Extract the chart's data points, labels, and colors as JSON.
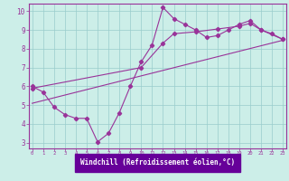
{
  "xlabel": "Windchill (Refroidissement éolien,°C)",
  "bg_color": "#cceee8",
  "plot_bg_color": "#cceee8",
  "line_color": "#993399",
  "grid_color": "#99cccc",
  "xlabel_bg": "#660099",
  "xlabel_fg": "#ffffff",
  "spine_color": "#993399",
  "tick_color": "#993399",
  "xlim": [
    -0.3,
    23.3
  ],
  "ylim": [
    2.7,
    10.4
  ],
  "xticks": [
    0,
    1,
    2,
    3,
    4,
    5,
    6,
    7,
    8,
    9,
    10,
    11,
    12,
    13,
    14,
    15,
    16,
    17,
    18,
    19,
    20,
    21,
    22,
    23
  ],
  "yticks": [
    3,
    4,
    5,
    6,
    7,
    8,
    9,
    10
  ],
  "line1_x": [
    0,
    1,
    2,
    3,
    4,
    5,
    6,
    7,
    8,
    9,
    10,
    11,
    12,
    13,
    14,
    15,
    16,
    17,
    18,
    19,
    20,
    21,
    22,
    23
  ],
  "line1_y": [
    6.0,
    5.7,
    4.9,
    4.5,
    4.3,
    4.3,
    3.05,
    3.5,
    4.6,
    6.0,
    7.3,
    8.2,
    10.2,
    9.6,
    9.3,
    9.0,
    8.6,
    8.7,
    9.0,
    9.3,
    9.5,
    9.0,
    8.8,
    8.5
  ],
  "line2_x": [
    0,
    10,
    12,
    13,
    15,
    17,
    19,
    20,
    21,
    23
  ],
  "line2_y": [
    5.9,
    7.0,
    8.3,
    8.8,
    8.9,
    9.05,
    9.2,
    9.35,
    9.0,
    8.5
  ],
  "line3_x": [
    0,
    23
  ],
  "line3_y": [
    5.1,
    8.45
  ]
}
